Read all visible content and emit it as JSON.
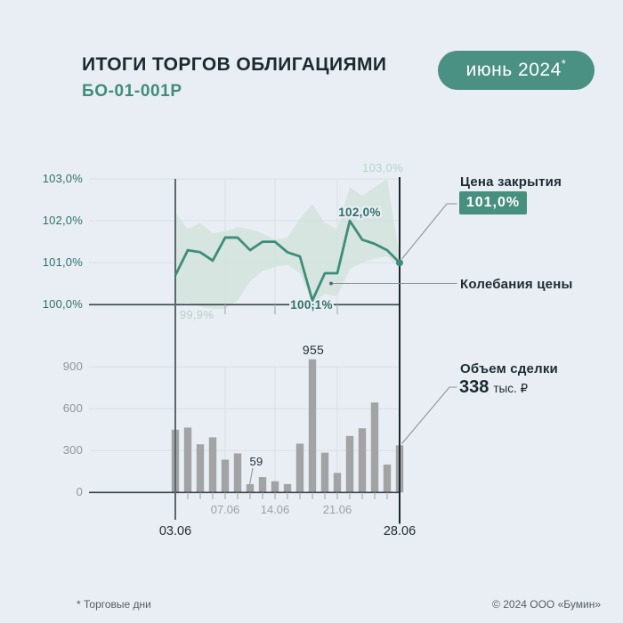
{
  "header": {
    "title": "ИТОГИ ТОРГОВ ОБЛИГАЦИЯМИ",
    "subtitle": "БО-01-001Р",
    "period_badge": "июнь 2024",
    "period_badge_note": "*"
  },
  "legend": {
    "close_label": "Цена закрытия",
    "close_value": "101,0%",
    "range_label": "Колебания цены",
    "volume_label": "Объем сделки",
    "volume_value": "338",
    "volume_unit": "тыс. ₽"
  },
  "footer": {
    "note": "* Торговые дни",
    "copyright": "© 2024 ООО «Бумин»"
  },
  "colors": {
    "background": "#e9eef4",
    "accent_teal": "#4a9184",
    "value_badge": "#47907f",
    "price_line": "#3e8d7a",
    "price_band": "#cfe2d9",
    "bars": "#a1a3a4",
    "axis_dark": "#39444c",
    "axis_left": "#5c676e",
    "axis_right": "#1b272e",
    "grid_light": "#d7dde3",
    "leader_gray": "#8b9298",
    "teal_text": "#2f7068",
    "muted_teal": "#b6d1c8",
    "dark_text": "#232f35"
  },
  "chart_data": [
    {
      "type": "line",
      "title": "Цена закрытия",
      "x": [
        "03.06",
        "04.06",
        "05.06",
        "06.06",
        "07.06",
        "10.06",
        "11.06",
        "13.06",
        "14.06",
        "17.06",
        "18.06",
        "19.06",
        "20.06",
        "21.06",
        "24.06",
        "25.06",
        "26.06",
        "27.06",
        "28.06"
      ],
      "series": [
        {
          "name": "Цена закрытия",
          "values": [
            100.7,
            101.3,
            101.25,
            101.05,
            101.6,
            101.6,
            101.3,
            101.5,
            101.5,
            101.25,
            101.15,
            100.1,
            100.75,
            100.75,
            102.0,
            101.55,
            101.45,
            101.3,
            101.0
          ]
        },
        {
          "name": "Колебания цены (максимум)",
          "values": [
            102.2,
            101.8,
            101.95,
            101.7,
            101.75,
            101.85,
            101.8,
            101.7,
            101.55,
            101.6,
            102.05,
            102.4,
            101.95,
            101.8,
            102.8,
            102.6,
            102.8,
            103.0,
            101.15
          ]
        },
        {
          "name": "Колебания цены (минимум)",
          "values": [
            100.0,
            100.05,
            99.95,
            99.9,
            99.9,
            100.1,
            100.55,
            100.8,
            100.9,
            100.95,
            100.75,
            100.05,
            100.25,
            100.2,
            100.85,
            101.0,
            101.1,
            101.15,
            100.9
          ]
        }
      ],
      "ylim": [
        100,
        103
      ],
      "y_tick_values": [
        103,
        102,
        101,
        100
      ],
      "y_tick_labels": [
        "103,0%",
        "102,0%",
        "101,0%",
        "100,0%"
      ],
      "x_ticks_minor": [
        {
          "label": "07.06",
          "index": 4
        },
        {
          "label": "14.06",
          "index": 8
        },
        {
          "label": "21.06",
          "index": 13
        }
      ],
      "x_ticks_major": [
        {
          "label": "03.06",
          "index": 0
        },
        {
          "label": "28.06",
          "index": 18
        }
      ],
      "annotations": [
        {
          "key": "band_max",
          "text": "103,0%"
        },
        {
          "key": "peak",
          "text": "102,0%"
        },
        {
          "key": "band_min",
          "text": "99,9%"
        },
        {
          "key": "dip",
          "text": "100,1%"
        }
      ],
      "grid": true,
      "legend_position": "right"
    },
    {
      "type": "bar",
      "title": "Объем сделки, тыс. ₽",
      "categories": [
        "03.06",
        "04.06",
        "05.06",
        "06.06",
        "07.06",
        "10.06",
        "11.06",
        "13.06",
        "14.06",
        "17.06",
        "18.06",
        "19.06",
        "20.06",
        "21.06",
        "24.06",
        "25.06",
        "26.06",
        "27.06",
        "28.06"
      ],
      "values": [
        450,
        465,
        345,
        395,
        235,
        280,
        59,
        110,
        80,
        60,
        350,
        955,
        285,
        140,
        405,
        460,
        645,
        200,
        338
      ],
      "ylim": [
        0,
        955
      ],
      "y_tick_values": [
        900,
        600,
        300,
        0
      ],
      "y_tick_labels": [
        "900",
        "600",
        "300",
        "0"
      ],
      "annotations": [
        {
          "key": "vol_max",
          "text": "955"
        },
        {
          "key": "vol_min",
          "text": "59"
        }
      ],
      "grid": true
    }
  ]
}
